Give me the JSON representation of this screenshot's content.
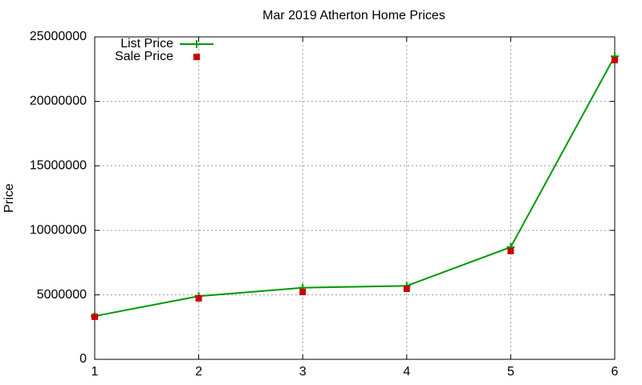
{
  "chart_data": {
    "type": "line",
    "title": "Mar 2019 Atherton Home Prices",
    "y_label": "Price",
    "x": [
      1,
      2,
      3,
      4,
      5,
      6
    ],
    "series": [
      {
        "name": "List Price",
        "color": "#009900",
        "values": [
          3350000,
          4900000,
          5550000,
          5700000,
          8700000,
          23500000
        ],
        "line": true,
        "marker": "plus"
      },
      {
        "name": "Sale Price",
        "color": "#cc0000",
        "values": [
          3300000,
          4730000,
          5220000,
          5470000,
          8400000,
          23200000
        ],
        "line": false,
        "marker": "square"
      }
    ],
    "xlim": [
      1,
      6
    ],
    "xticks": [
      1,
      2,
      3,
      4,
      5,
      6
    ],
    "ylim": [
      0,
      25000000
    ],
    "yticks": [
      0,
      5000000,
      10000000,
      15000000,
      20000000,
      25000000
    ],
    "grid": true,
    "legend": "top-left"
  }
}
